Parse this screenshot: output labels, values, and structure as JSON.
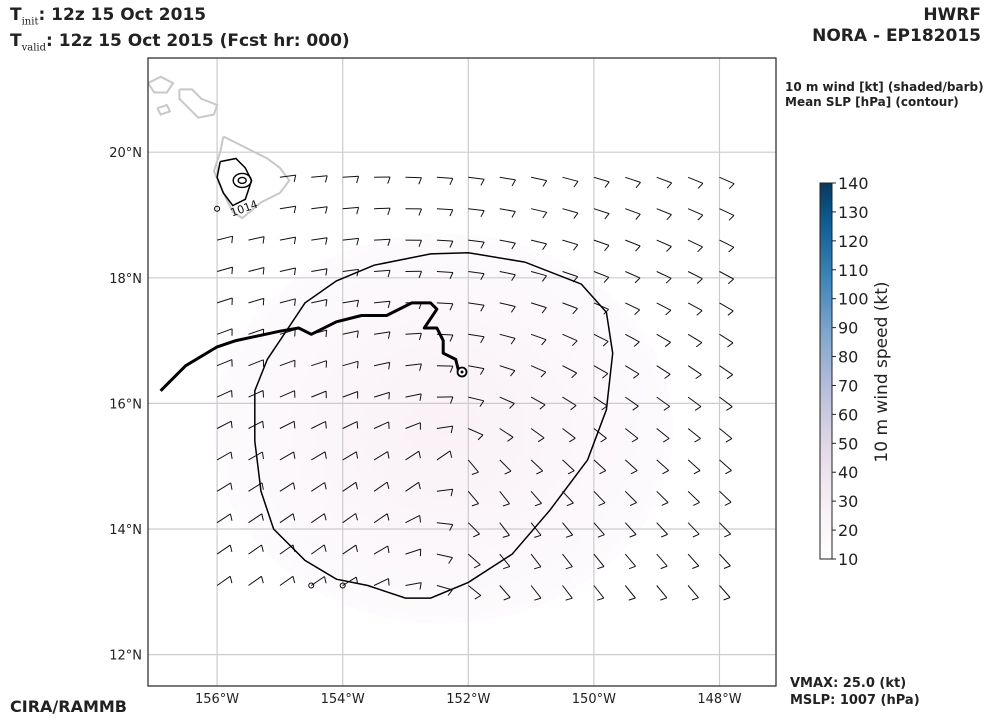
{
  "header": {
    "t_init_prefix": "T",
    "t_init_sub": "init",
    "t_init_value": ":  12z 15 Oct 2015",
    "t_valid_prefix": "T",
    "t_valid_sub": "valid",
    "t_valid_value": ": 12z 15 Oct 2015 (Fcst hr: 000)",
    "model": "HWRF",
    "storm": "NORA - EP182015"
  },
  "fields": {
    "line1": "10 m wind [kt] (shaded/barb)",
    "line2": "Mean SLP [hPa] (contour)"
  },
  "stats": {
    "vmax": "VMAX:  25.0 (kt)",
    "mslp": "MSLP: 1007 (hPa)"
  },
  "credit": "CIRA/RAMMB",
  "colors": {
    "grid": "#cccccc",
    "coast": "#c8c8c8",
    "contour": "#000000",
    "track": "#000000",
    "shade": "#fbf6fa"
  },
  "chart_data": {
    "type": "map",
    "x_ticks": [
      {
        "value": -156,
        "label": "156°W"
      },
      {
        "value": -154,
        "label": "154°W"
      },
      {
        "value": -152,
        "label": "152°W"
      },
      {
        "value": -150,
        "label": "150°W"
      },
      {
        "value": -148,
        "label": "148°W"
      }
    ],
    "y_ticks": [
      {
        "value": 12,
        "label": "12°N"
      },
      {
        "value": 14,
        "label": "14°N"
      },
      {
        "value": 16,
        "label": "16°N"
      },
      {
        "value": 18,
        "label": "18°N"
      },
      {
        "value": 20,
        "label": "20°N"
      }
    ],
    "lon_range": [
      -157.1,
      -147.1
    ],
    "lat_range": [
      11.5,
      21.5
    ],
    "contour_label": "1014",
    "track": [
      [
        -156.9,
        16.2
      ],
      [
        -156.5,
        16.6
      ],
      [
        -156.0,
        16.9
      ],
      [
        -155.7,
        17.0
      ],
      [
        -155.0,
        17.15
      ],
      [
        -154.7,
        17.2
      ],
      [
        -154.5,
        17.1
      ],
      [
        -154.1,
        17.3
      ],
      [
        -153.7,
        17.4
      ],
      [
        -153.3,
        17.4
      ],
      [
        -152.9,
        17.6
      ],
      [
        -152.6,
        17.6
      ],
      [
        -152.5,
        17.5
      ],
      [
        -152.7,
        17.2
      ],
      [
        -152.5,
        17.2
      ],
      [
        -152.4,
        17.0
      ],
      [
        -152.4,
        16.8
      ],
      [
        -152.2,
        16.7
      ],
      [
        -152.15,
        16.5
      ]
    ],
    "center": [
      -152.1,
      16.5
    ],
    "slp_isobar": [
      [
        -155.0,
        17.0
      ],
      [
        -154.6,
        17.6
      ],
      [
        -154.1,
        17.95
      ],
      [
        -153.5,
        18.2
      ],
      [
        -152.6,
        18.38
      ],
      [
        -152.0,
        18.4
      ],
      [
        -151.1,
        18.25
      ],
      [
        -150.2,
        17.9
      ],
      [
        -149.8,
        17.45
      ],
      [
        -149.7,
        16.8
      ],
      [
        -149.8,
        15.9
      ],
      [
        -150.1,
        15.1
      ],
      [
        -150.7,
        14.3
      ],
      [
        -151.3,
        13.6
      ],
      [
        -152.0,
        13.15
      ],
      [
        -152.6,
        12.9
      ],
      [
        -153.0,
        12.9
      ],
      [
        -153.3,
        13.0
      ],
      [
        -153.6,
        13.1
      ],
      [
        -154.1,
        13.2
      ],
      [
        -154.6,
        13.5
      ],
      [
        -155.1,
        14.0
      ],
      [
        -155.3,
        14.6
      ],
      [
        -155.4,
        15.4
      ],
      [
        -155.4,
        16.2
      ],
      [
        -155.2,
        16.7
      ],
      [
        -155.0,
        17.0
      ]
    ],
    "small_circles": [
      [
        -154.5,
        13.1
      ],
      [
        -154.0,
        13.1
      ],
      [
        -156.0,
        19.1
      ]
    ],
    "colorbar": {
      "label": "10 m wind speed (kt)",
      "min": 10,
      "max": 140,
      "ticks": [
        "10",
        "20",
        "30",
        "40",
        "50",
        "60",
        "70",
        "80",
        "90",
        "100",
        "110",
        "120",
        "130",
        "140"
      ]
    }
  }
}
